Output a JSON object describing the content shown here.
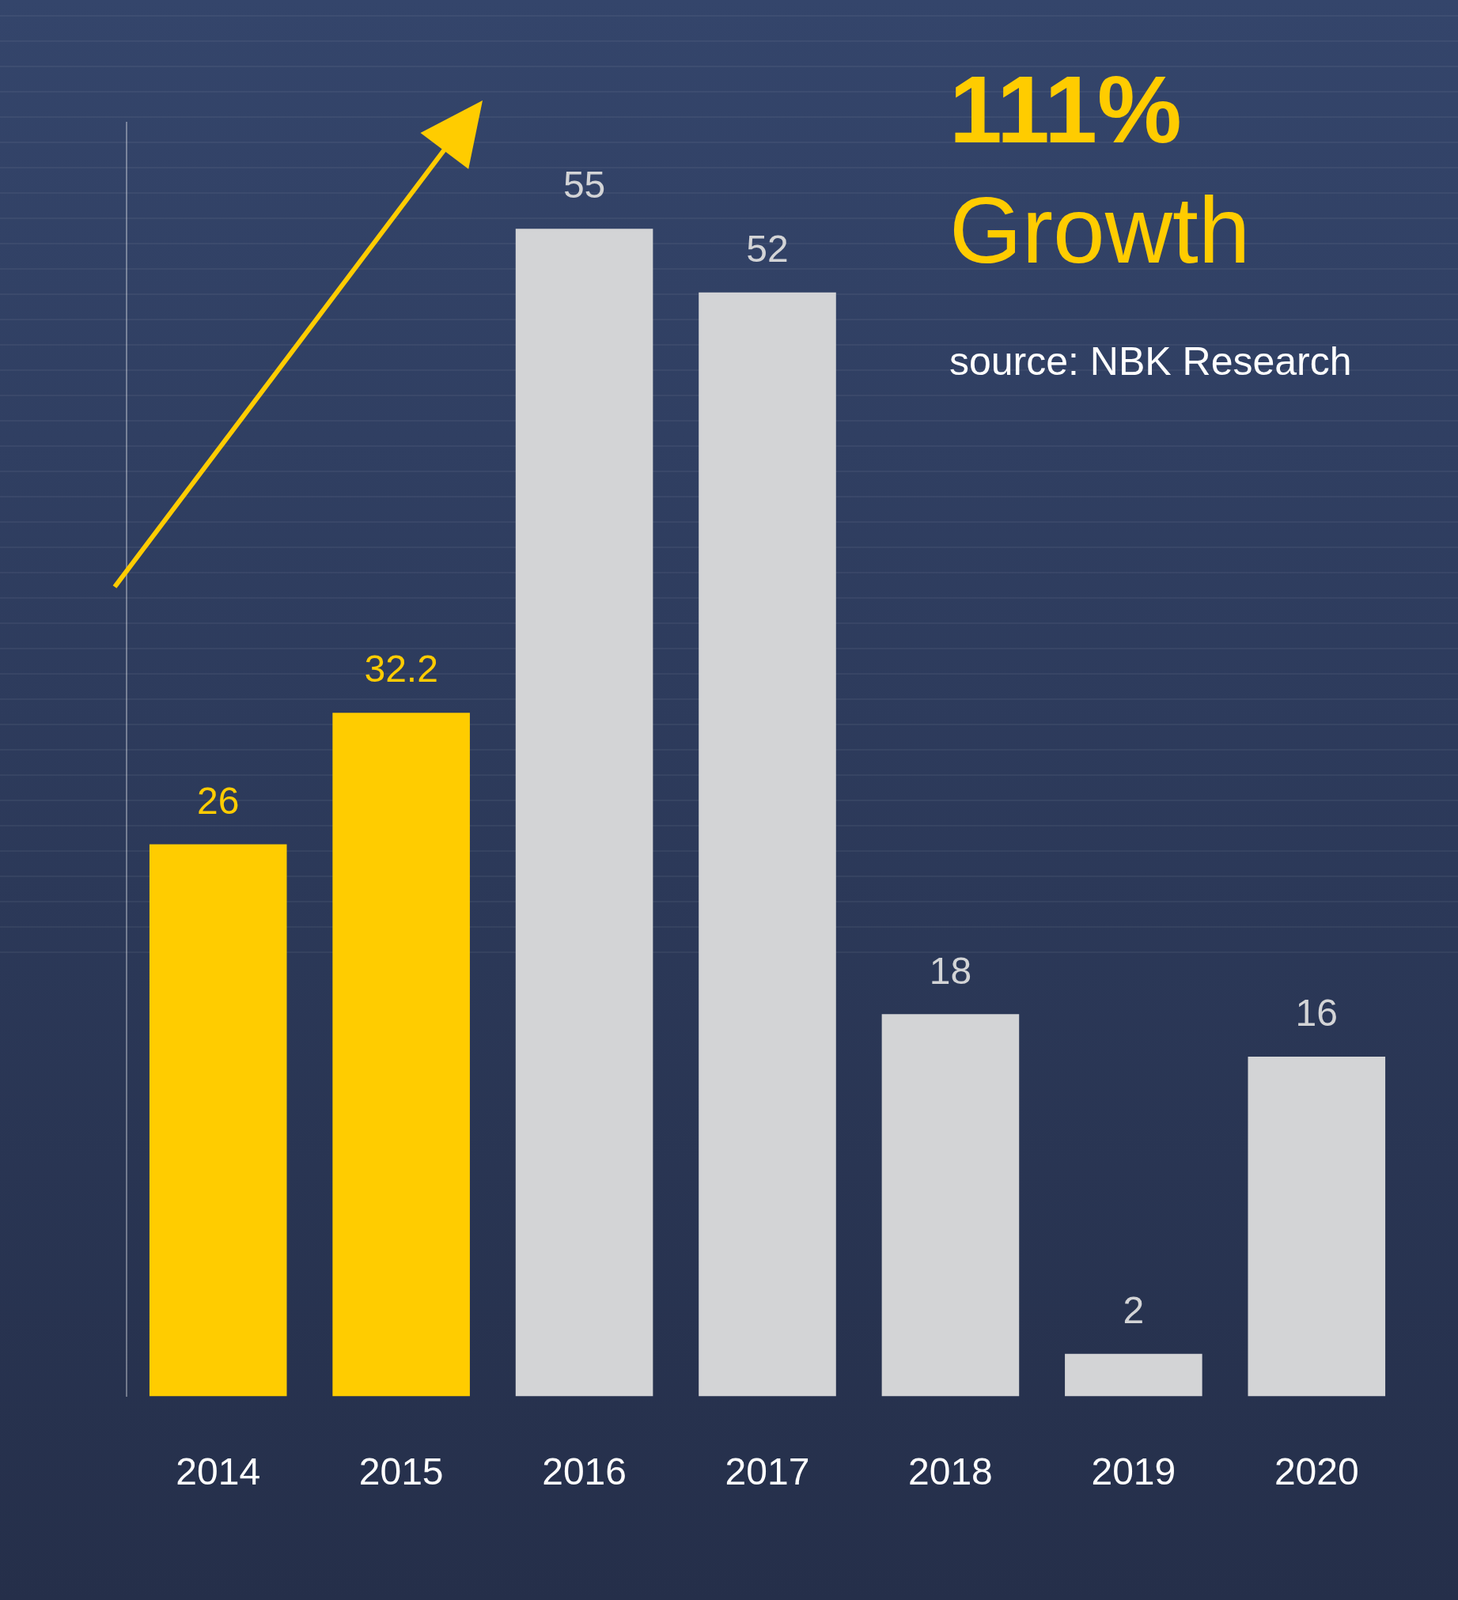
{
  "chart_data": {
    "type": "bar",
    "annotations": [
      "111%",
      "Growth",
      "source: NBK Research"
    ],
    "categories": [
      "2014",
      "2015",
      "2016",
      "2017",
      "2018",
      "2019",
      "2020"
    ],
    "values": [
      26,
      32.2,
      55,
      52,
      18,
      2,
      16
    ],
    "colors": [
      "#ffcc00",
      "#ffcc00",
      "#d3d4d6",
      "#d3d4d6",
      "#d3d4d6",
      "#d3d4d6",
      "#d3d4d6"
    ],
    "ylim": [
      0,
      60
    ],
    "grid": false,
    "tick_labels": "x",
    "data_labels": true
  }
}
